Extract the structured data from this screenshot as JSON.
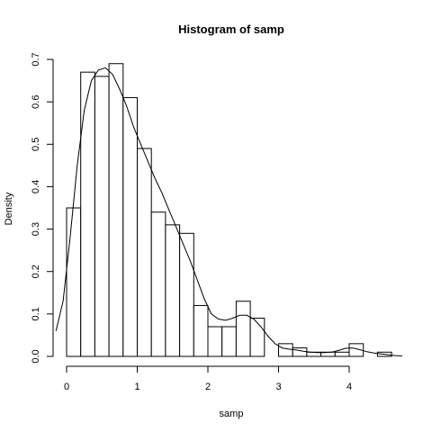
{
  "chart_data": {
    "type": "histogram",
    "title": "Histogram of samp",
    "xlabel": "samp",
    "ylabel": "Density",
    "xlim": [
      0,
      4.8
    ],
    "ylim": [
      0,
      0.7
    ],
    "x_ticks": [
      0,
      1,
      2,
      3,
      4
    ],
    "y_ticks": [
      0.0,
      0.1,
      0.2,
      0.3,
      0.4,
      0.5,
      0.6,
      0.7
    ],
    "x_tick_labels": [
      "0",
      "1",
      "2",
      "3",
      "4"
    ],
    "y_tick_labels": [
      "0.0",
      "0.1",
      "0.2",
      "0.3",
      "0.4",
      "0.5",
      "0.6",
      "0.7"
    ],
    "bin_edges": [
      0,
      0.2,
      0.4,
      0.6,
      0.8,
      1.0,
      1.2,
      1.4,
      1.6,
      1.8,
      2.0,
      2.2,
      2.4,
      2.6,
      2.8,
      3.0,
      3.2,
      3.4,
      3.6,
      3.8,
      4.0,
      4.2,
      4.4,
      4.6
    ],
    "densities": [
      0.35,
      0.67,
      0.66,
      0.69,
      0.61,
      0.49,
      0.34,
      0.31,
      0.29,
      0.12,
      0.07,
      0.07,
      0.13,
      0.09,
      0.0,
      0.03,
      0.02,
      0.01,
      0.01,
      0.01,
      0.03,
      0.0,
      0.01
    ],
    "density_curve": {
      "x": [
        -0.15,
        -0.05,
        0.05,
        0.15,
        0.25,
        0.35,
        0.45,
        0.55,
        0.65,
        0.75,
        0.85,
        0.95,
        1.05,
        1.15,
        1.25,
        1.35,
        1.45,
        1.55,
        1.65,
        1.75,
        1.85,
        1.95,
        2.05,
        2.15,
        2.25,
        2.35,
        2.45,
        2.55,
        2.65,
        2.75,
        2.85,
        2.95,
        3.05,
        3.15,
        3.25,
        3.35,
        3.45,
        3.55,
        3.65,
        3.75,
        3.85,
        3.95,
        4.05,
        4.15,
        4.25,
        4.35,
        4.45,
        4.55,
        4.65,
        4.75
      ],
      "y": [
        0.06,
        0.13,
        0.28,
        0.45,
        0.58,
        0.65,
        0.675,
        0.68,
        0.665,
        0.63,
        0.59,
        0.54,
        0.5,
        0.46,
        0.42,
        0.385,
        0.345,
        0.305,
        0.265,
        0.225,
        0.18,
        0.135,
        0.1,
        0.088,
        0.085,
        0.09,
        0.097,
        0.097,
        0.088,
        0.07,
        0.048,
        0.03,
        0.02,
        0.017,
        0.015,
        0.012,
        0.01,
        0.009,
        0.009,
        0.01,
        0.014,
        0.019,
        0.02,
        0.016,
        0.011,
        0.008,
        0.006,
        0.004,
        0.002,
        0.001
      ]
    }
  }
}
